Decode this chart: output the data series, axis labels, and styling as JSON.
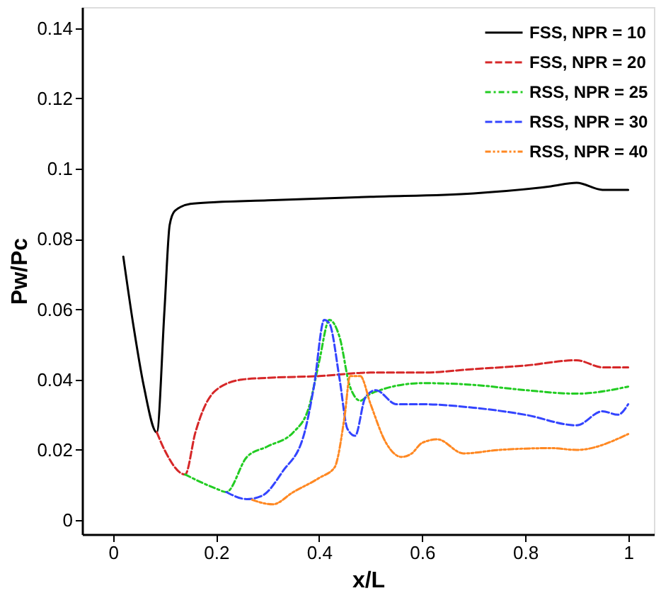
{
  "chart_data": {
    "type": "line",
    "xlabel": "x/L",
    "ylabel": "Pw/Pc",
    "xlim": [
      -0.06,
      1.05
    ],
    "ylim": [
      -0.004,
      0.146
    ],
    "xticks": [
      0,
      0.2,
      0.4,
      0.6,
      0.8,
      1
    ],
    "yticks": [
      0,
      0.02,
      0.04,
      0.06,
      0.08,
      0.1,
      0.12,
      0.14
    ],
    "grid": false,
    "legend": "top right",
    "marker": "none",
    "series": [
      {
        "name": "FSS, NPR = 10",
        "color": "#000000",
        "line_style": "solid",
        "x": [
          0.02,
          0.04,
          0.06,
          0.085,
          0.1,
          0.11,
          0.12,
          0.15,
          0.2,
          0.3,
          0.5,
          0.7,
          0.85,
          0.9,
          0.95,
          1.0
        ],
        "values": [
          0.075,
          0.055,
          0.038,
          0.025,
          0.06,
          0.084,
          0.088,
          0.09,
          0.0905,
          0.091,
          0.092,
          0.093,
          0.095,
          0.096,
          0.094,
          0.094
        ]
      },
      {
        "name": "FSS, NPR = 20",
        "color": "#d62728",
        "line_style": "dashed",
        "x": [
          0.085,
          0.1,
          0.14,
          0.16,
          0.18,
          0.2,
          0.25,
          0.3,
          0.4,
          0.5,
          0.6,
          0.7,
          0.8,
          0.9,
          0.95,
          1.0
        ],
        "values": [
          0.025,
          0.02,
          0.013,
          0.025,
          0.033,
          0.037,
          0.04,
          0.0405,
          0.041,
          0.042,
          0.042,
          0.043,
          0.044,
          0.0455,
          0.0435,
          0.0435
        ]
      },
      {
        "name": "RSS, NPR = 25",
        "color": "#22cc22",
        "line_style": "dashdot",
        "x": [
          0.14,
          0.2,
          0.22,
          0.26,
          0.3,
          0.35,
          0.38,
          0.4,
          0.42,
          0.44,
          0.46,
          0.48,
          0.5,
          0.6,
          0.7,
          0.8,
          0.9,
          1.0
        ],
        "values": [
          0.013,
          0.009,
          0.008,
          0.018,
          0.021,
          0.025,
          0.032,
          0.045,
          0.057,
          0.052,
          0.038,
          0.034,
          0.036,
          0.039,
          0.0385,
          0.037,
          0.036,
          0.038
        ]
      },
      {
        "name": "RSS, NPR = 30",
        "color": "#3344ff",
        "line_style": "dashed",
        "x": [
          0.22,
          0.26,
          0.29,
          0.33,
          0.37,
          0.39,
          0.41,
          0.42,
          0.44,
          0.455,
          0.47,
          0.49,
          0.51,
          0.55,
          0.6,
          0.7,
          0.8,
          0.9,
          0.95,
          0.98,
          1.0
        ],
        "values": [
          0.008,
          0.006,
          0.007,
          0.014,
          0.024,
          0.038,
          0.057,
          0.056,
          0.04,
          0.026,
          0.024,
          0.035,
          0.037,
          0.033,
          0.033,
          0.032,
          0.03,
          0.027,
          0.031,
          0.03,
          0.033
        ]
      },
      {
        "name": "RSS, NPR = 40",
        "color": "#ff8822",
        "line_style": "dashdotdot",
        "x": [
          0.27,
          0.31,
          0.35,
          0.4,
          0.43,
          0.45,
          0.46,
          0.48,
          0.5,
          0.53,
          0.56,
          0.58,
          0.6,
          0.63,
          0.68,
          0.75,
          0.85,
          0.9,
          1.0
        ],
        "values": [
          0.0058,
          0.0045,
          0.008,
          0.012,
          0.015,
          0.03,
          0.041,
          0.041,
          0.033,
          0.022,
          0.018,
          0.019,
          0.022,
          0.023,
          0.019,
          0.02,
          0.0205,
          0.02,
          0.0245
        ]
      }
    ]
  }
}
